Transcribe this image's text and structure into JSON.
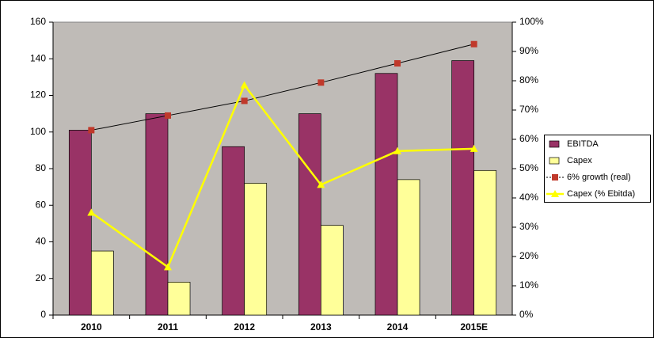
{
  "chart_data": {
    "type": "bar",
    "categories": [
      "2010",
      "2011",
      "2012",
      "2013",
      "2014",
      "2015E"
    ],
    "series": [
      {
        "name": "EBITDA",
        "type": "bar",
        "color": "#993366",
        "values": [
          101,
          110,
          92,
          110,
          132,
          139
        ]
      },
      {
        "name": "Capex",
        "type": "bar",
        "color": "#ffff99",
        "values": [
          35,
          18,
          72,
          49,
          74,
          79
        ]
      },
      {
        "name": "6% growth (real)",
        "type": "line",
        "color": "#000000",
        "marker_color": "#c0392b",
        "marker": "square",
        "values": [
          101,
          109,
          117,
          127,
          137.5,
          148
        ]
      },
      {
        "name": "Capex (% Ebitda)",
        "type": "line",
        "axis": "y2",
        "color": "#ffff00",
        "marker_color": "#ffff00",
        "marker": "triangle",
        "values": [
          35,
          16.4,
          78.5,
          44.5,
          56,
          56.8
        ]
      }
    ],
    "ylim": [
      0,
      160
    ],
    "yticks": [
      0,
      20,
      40,
      60,
      80,
      100,
      120,
      140,
      160
    ],
    "y2lim": [
      0,
      100
    ],
    "y2ticks": [
      {
        "value": 0,
        "label": "0%"
      },
      {
        "value": 10,
        "label": "10%"
      },
      {
        "value": 20,
        "label": "20%"
      },
      {
        "value": 30,
        "label": "30%"
      },
      {
        "value": 40,
        "label": "40%"
      },
      {
        "value": 50,
        "label": "50%"
      },
      {
        "value": 60,
        "label": "60%"
      },
      {
        "value": 70,
        "label": "70%"
      },
      {
        "value": 80,
        "label": "80%"
      },
      {
        "value": 90,
        "label": "90%"
      },
      {
        "value": 100,
        "label": "100%"
      }
    ],
    "legend": "right"
  }
}
